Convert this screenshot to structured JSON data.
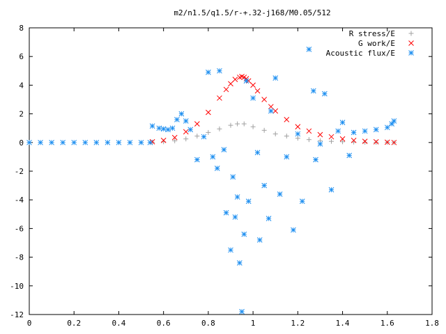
{
  "chart_data": {
    "type": "scatter",
    "title": "m2/n1.5/q1.5/r-+.32-j168/M0.05/512",
    "xlim": [
      0,
      1.8
    ],
    "ylim": [
      -12,
      8
    ],
    "xticks": [
      "0",
      "0.2",
      "0.4",
      "0.6",
      "0.8",
      "1",
      "1.2",
      "1.4",
      "1.6",
      "1.8"
    ],
    "yticks": [
      "-12",
      "-10",
      "-8",
      "-6",
      "-4",
      "-2",
      "0",
      "2",
      "4",
      "6",
      "8"
    ],
    "xtick_values": [
      0,
      0.2,
      0.4,
      0.6,
      0.8,
      1.0,
      1.2,
      1.4,
      1.6,
      1.8
    ],
    "ytick_values": [
      -12,
      -10,
      -8,
      -6,
      -4,
      -2,
      0,
      2,
      4,
      6,
      8
    ],
    "legend_position": "top-right",
    "grid": false,
    "series": [
      {
        "name": "R stress/E",
        "marker": "plus",
        "color": "#a0a0a0",
        "x": [
          0.55,
          0.6,
          0.65,
          0.7,
          0.75,
          0.8,
          0.85,
          0.9,
          0.93,
          0.96,
          1.0,
          1.05,
          1.1,
          1.15,
          1.2,
          1.25,
          1.3,
          1.35,
          1.4,
          1.45,
          1.5,
          1.55,
          1.6,
          1.63
        ],
        "y": [
          0.02,
          0.05,
          0.12,
          0.25,
          0.45,
          0.7,
          0.95,
          1.2,
          1.3,
          1.3,
          1.1,
          0.85,
          0.6,
          0.45,
          0.3,
          0.2,
          0.12,
          0.08,
          0.05,
          0.03,
          0.02,
          0.01,
          0.01,
          0.0
        ]
      },
      {
        "name": "G work/E",
        "marker": "cross",
        "color": "#ff0000",
        "x": [
          0.55,
          0.6,
          0.65,
          0.7,
          0.75,
          0.8,
          0.85,
          0.88,
          0.9,
          0.92,
          0.94,
          0.95,
          0.96,
          0.97,
          0.98,
          1.0,
          1.02,
          1.05,
          1.08,
          1.1,
          1.15,
          1.2,
          1.25,
          1.3,
          1.35,
          1.4,
          1.45,
          1.5,
          1.55,
          1.6,
          1.63
        ],
        "y": [
          0.05,
          0.15,
          0.35,
          0.75,
          1.3,
          2.1,
          3.1,
          3.7,
          4.1,
          4.4,
          4.55,
          4.6,
          4.55,
          4.45,
          4.3,
          4.0,
          3.6,
          3.0,
          2.5,
          2.2,
          1.6,
          1.1,
          0.8,
          0.55,
          0.4,
          0.25,
          0.15,
          0.08,
          0.05,
          0.02,
          0.0
        ]
      },
      {
        "name": "Acoustic flux/E",
        "marker": "star",
        "color": "#1c8ef0",
        "x": [
          0.0,
          0.05,
          0.1,
          0.15,
          0.2,
          0.25,
          0.3,
          0.35,
          0.4,
          0.45,
          0.5,
          0.54,
          0.55,
          0.58,
          0.6,
          0.62,
          0.64,
          0.66,
          0.68,
          0.7,
          0.72,
          0.75,
          0.78,
          0.8,
          0.82,
          0.84,
          0.85,
          0.87,
          0.88,
          0.9,
          0.91,
          0.92,
          0.93,
          0.94,
          0.95,
          0.96,
          0.97,
          0.98,
          1.0,
          1.02,
          1.03,
          1.05,
          1.07,
          1.08,
          1.1,
          1.12,
          1.15,
          1.18,
          1.2,
          1.22,
          1.25,
          1.27,
          1.28,
          1.3,
          1.32,
          1.35,
          1.38,
          1.4,
          1.43,
          1.45,
          1.5,
          1.55,
          1.6,
          1.62,
          1.63
        ],
        "y": [
          0.0,
          0.0,
          0.0,
          0.0,
          0.0,
          0.0,
          0.0,
          0.0,
          0.0,
          0.0,
          0.0,
          0.0,
          1.15,
          1.0,
          0.95,
          0.9,
          1.0,
          1.6,
          2.0,
          1.5,
          0.9,
          -1.2,
          0.4,
          4.9,
          -1.0,
          -1.8,
          5.0,
          -0.5,
          -4.9,
          -7.5,
          -2.4,
          -5.2,
          -3.8,
          -8.4,
          -11.8,
          -6.4,
          4.3,
          -4.1,
          3.1,
          -0.7,
          -6.8,
          -3.0,
          -5.3,
          2.2,
          4.5,
          -3.6,
          -1.0,
          -6.1,
          0.6,
          -4.1,
          6.5,
          3.6,
          -1.2,
          -0.1,
          3.4,
          -3.3,
          0.8,
          1.4,
          -0.9,
          0.7,
          0.8,
          0.9,
          1.05,
          1.3,
          1.5
        ]
      }
    ]
  }
}
